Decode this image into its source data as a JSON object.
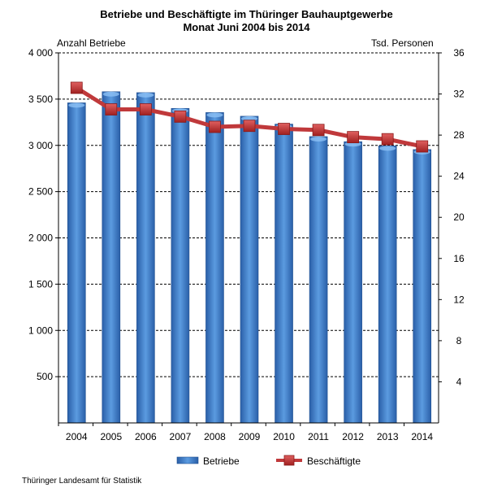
{
  "chart_data": {
    "type": "bar+line",
    "title": "Betriebe und Beschäftigte im Thüringer Bauhauptgewerbe",
    "subtitle": "Monat Juni 2004 bis 2014",
    "ylabel": "Anzahl Betriebe",
    "y2label": "Tsd. Personen",
    "categories": [
      "2004",
      "2005",
      "2006",
      "2007",
      "2008",
      "2009",
      "2010",
      "2011",
      "2012",
      "2013",
      "2014"
    ],
    "ylim": [
      0,
      4000
    ],
    "y2lim": [
      0,
      36
    ],
    "yticks": [
      "500",
      "1 000",
      "1 500",
      "2 000",
      "2 500",
      "3 000",
      "3 500",
      "4 000"
    ],
    "y2ticks": [
      "4",
      "8",
      "12",
      "16",
      "20",
      "24",
      "28",
      "32",
      "36"
    ],
    "grid": true,
    "legend_position": "bottom",
    "series": [
      {
        "name": "Betriebe",
        "type": "bar",
        "axis": "left",
        "color": "#3a78c8",
        "values": [
          3460,
          3580,
          3570,
          3400,
          3355,
          3315,
          3230,
          3095,
          3040,
          2995,
          2955
        ]
      },
      {
        "name": "Beschäftigte",
        "type": "line",
        "axis": "right",
        "color": "#c0393b",
        "values": [
          32.6,
          30.5,
          30.5,
          29.8,
          28.8,
          28.9,
          28.6,
          28.5,
          27.8,
          27.6,
          26.9
        ]
      }
    ]
  },
  "source": "Thüringer Landesamt für Statistik"
}
